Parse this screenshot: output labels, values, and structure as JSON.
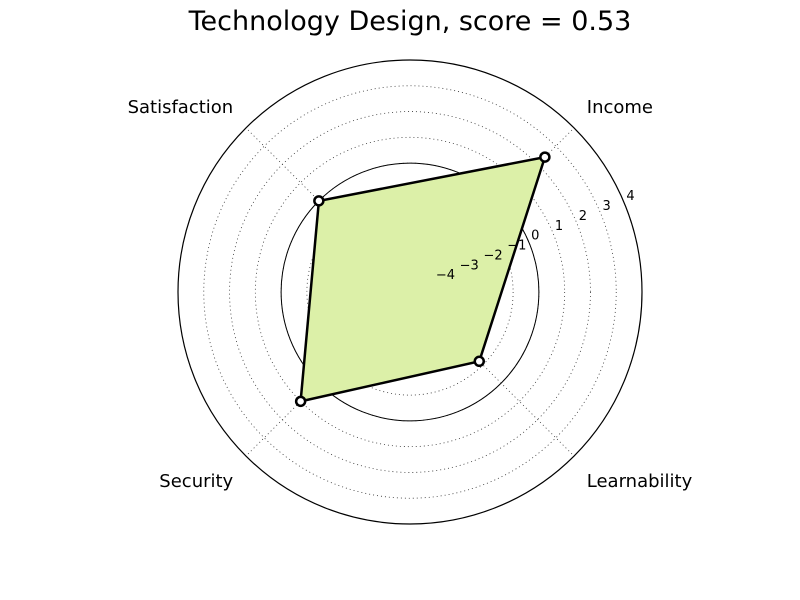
{
  "chart_data": {
    "type": "radar",
    "title": "Technology Design, score = 0.53",
    "axes": [
      "Income",
      "Learnability",
      "Security",
      "Satisfaction"
    ],
    "values": [
      2.4,
      -1.2,
      1.0,
      0.0
    ],
    "r_range": [
      -5,
      4
    ],
    "r_ticks": [
      -4,
      -3,
      -2,
      -1,
      0,
      1,
      2,
      3,
      4
    ],
    "r_tick_labels": [
      "−4",
      "−3",
      "−2",
      "−1",
      "0",
      "1",
      "2",
      "3",
      "4"
    ],
    "grid": true,
    "reference_circle": 0,
    "colors": {
      "fill": "#dcf0a8",
      "line": "#000000",
      "marker_face": "#ffffff"
    }
  }
}
